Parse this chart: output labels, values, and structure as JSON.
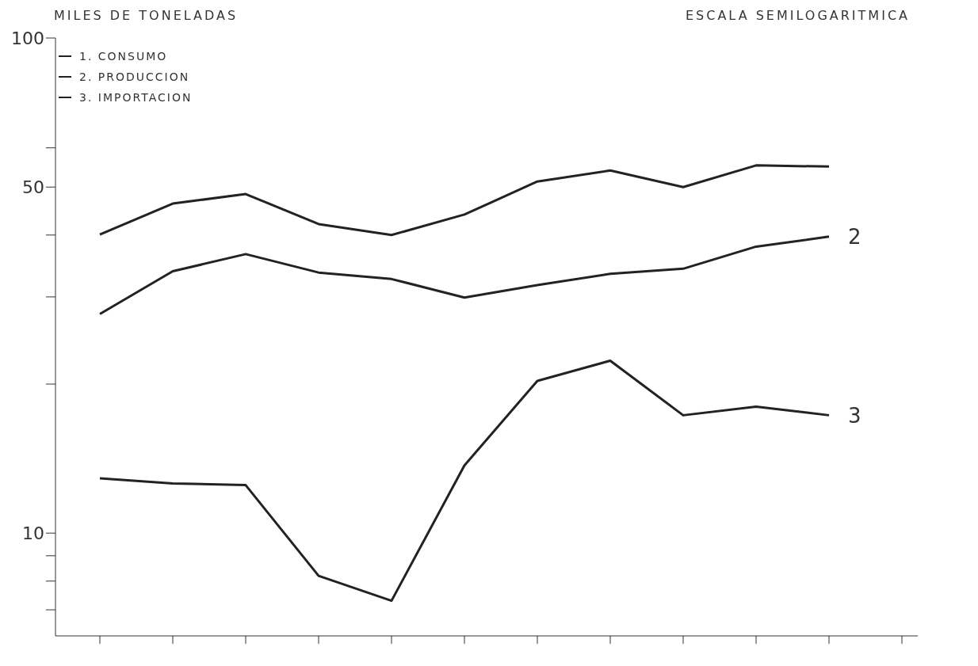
{
  "chart_data": {
    "type": "line",
    "ylabel": "MILES DE TONELADAS",
    "subtitle": "ESCALA SEMILOGARITMICA",
    "categories": [
      null,
      null,
      null,
      null,
      null,
      null,
      null,
      null,
      null,
      null,
      null,
      null
    ],
    "series": [
      {
        "name": "1. CONSUMO",
        "color": "#222222",
        "values": [
          40.1,
          46.3,
          48.4,
          42.1,
          40.0,
          44.0,
          51.3,
          54.0,
          50.0,
          55.3,
          55.0,
          null
        ]
      },
      {
        "name": "2. PRODUCCION",
        "color": "#222222",
        "values": [
          27.7,
          33.8,
          36.6,
          33.6,
          32.6,
          29.9,
          31.7,
          33.4,
          34.2,
          37.9,
          39.7,
          null
        ]
      },
      {
        "name": "3. IMPORTACION",
        "color": "#222222",
        "values": [
          12.9,
          12.6,
          12.5,
          8.2,
          7.3,
          13.7,
          20.3,
          22.3,
          17.3,
          18.0,
          17.3,
          null
        ]
      }
    ],
    "annotations": [
      "2",
      "3"
    ],
    "log": true,
    "ylim": [
      6.2,
      100
    ],
    "yticks": [
      {
        "value": 7,
        "label": null
      },
      {
        "value": 8,
        "label": null
      },
      {
        "value": 9,
        "label": null
      },
      10,
      {
        "value": 20,
        "label": null
      },
      {
        "value": 30,
        "label": null
      },
      {
        "value": 40,
        "label": null
      },
      50,
      {
        "value": 60,
        "label": null
      },
      100
    ],
    "grid": false,
    "legend": "top left",
    "marker": "none",
    "line_style": "solid"
  }
}
